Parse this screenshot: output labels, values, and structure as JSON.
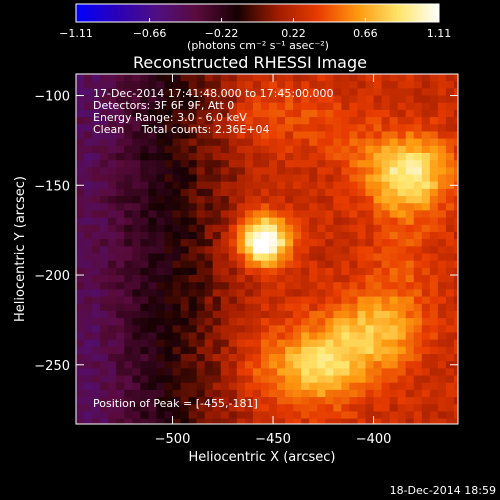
{
  "chart_data": {
    "type": "heatmap",
    "title": "Reconstructed RHESSI Image",
    "xlabel": "Heliocentric X (arcsec)",
    "ylabel": "Heliocentric Y (arcsec)",
    "xlim": [
      -548,
      -358
    ],
    "ylim": [
      -283,
      -88
    ],
    "x_ticks": [
      -500,
      -450,
      -400
    ],
    "y_ticks": [
      -100,
      -150,
      -200,
      -250
    ],
    "x_tick_labels": [
      "−500",
      "−450",
      "−400"
    ],
    "y_tick_labels": [
      "−100",
      "−150",
      "−200",
      "−250"
    ],
    "colorbar": {
      "min": -1.11,
      "max": 1.11,
      "tick_values": [
        -1.11,
        -0.66,
        -0.22,
        0.22,
        0.66,
        1.11
      ],
      "tick_labels": [
        "−1.11",
        "−0.66",
        "−0.22",
        "0.22",
        "0.66",
        "1.11"
      ],
      "unit_label": "(photons cm⁻² s⁻¹ asec⁻²)",
      "palette": [
        "#0000ff",
        "#2a00b8",
        "#4f0f82",
        "#5a0b3c",
        "#160003",
        "#a01c00",
        "#e83c00",
        "#ff9a10",
        "#ffe56a",
        "#ffffff"
      ]
    },
    "annotations": [
      "17-Dec-2014 17:41:48.000 to 17:45:00.000",
      "Detectors: 3F 6F 9F, Att 0",
      "Energy Range: 3.0 - 6.0 keV",
      "Clean     Total counts: 2.36E+04",
      "Position of Peak = [-455,-181]"
    ],
    "peak": {
      "x": -455,
      "y": -181
    },
    "sources": [
      {
        "x": -455,
        "y": -181,
        "intensity": 1.11
      },
      {
        "x": -381,
        "y": -143,
        "intensity": 0.72
      },
      {
        "x": -426,
        "y": -251,
        "intensity": 0.55
      },
      {
        "x": -397,
        "y": -232,
        "intensity": 0.45
      }
    ],
    "grid": false
  },
  "footer": {
    "timestamp": "18-Dec-2014 18:59"
  }
}
